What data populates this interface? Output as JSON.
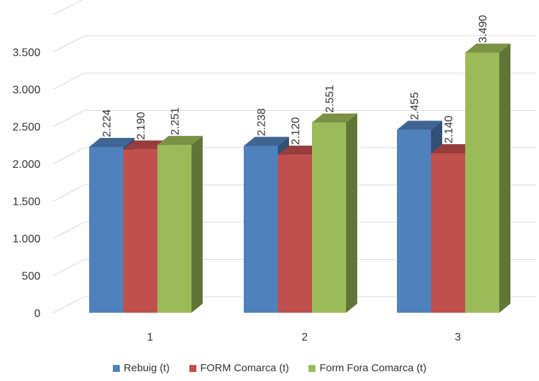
{
  "chart_data": {
    "type": "bar",
    "title": "",
    "xlabel": "",
    "ylabel": "",
    "categories": [
      "1",
      "2",
      "3"
    ],
    "series": [
      {
        "name": "Rebuig (t)",
        "values": [
          2224,
          2238,
          2455
        ],
        "labels": [
          "2.224",
          "2.238",
          "2.455"
        ],
        "color": "#4f81bd"
      },
      {
        "name": "FORM Comarca (t)",
        "values": [
          2190,
          2120,
          2140
        ],
        "labels": [
          "2.190",
          "2.120",
          "2.140"
        ],
        "color": "#c0504d"
      },
      {
        "name": "Form Fora Comarca (t)",
        "values": [
          2251,
          2551,
          3490
        ],
        "labels": [
          "2.251",
          "2.551",
          "3.490"
        ],
        "color": "#9bbb59"
      }
    ],
    "ylim": [
      0,
      4000
    ],
    "yticks": [
      0,
      500,
      1000,
      1500,
      2000,
      2500,
      3000,
      3500
    ],
    "ytick_labels": [
      "0",
      "500",
      "1.000",
      "1.500",
      "2.000",
      "2.500",
      "3.000",
      "3.500"
    ],
    "grid": true,
    "legend_position": "bottom",
    "three_d": true
  }
}
